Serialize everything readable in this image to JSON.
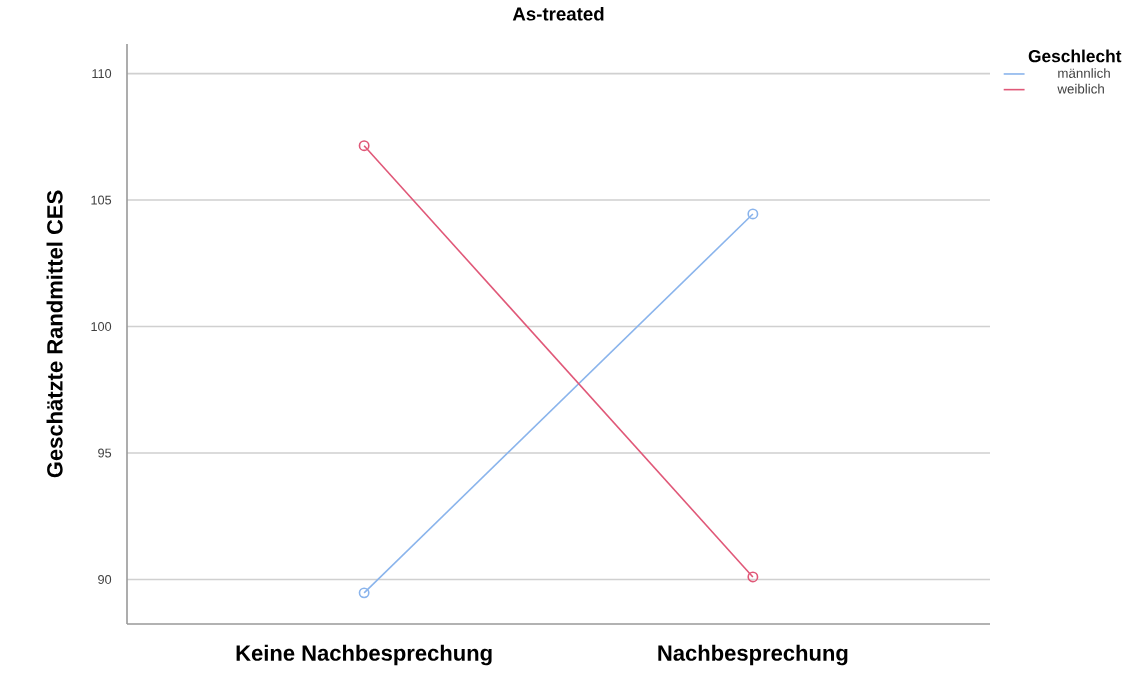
{
  "chart_data": {
    "type": "line",
    "title": "As-treated",
    "ylabel": "Geschätzte Randmittel CES",
    "legend_title": "Geschlecht",
    "categories": [
      "Keine Nachbesprechung",
      "Nachbesprechung"
    ],
    "series": [
      {
        "name": "männlich",
        "color": "#8ab4ec",
        "values": [
          89.47,
          104.45
        ]
      },
      {
        "name": "weiblich",
        "color": "#e05878",
        "values": [
          107.15,
          90.1
        ]
      }
    ],
    "ylim": [
      88.24,
      111.17
    ],
    "yticks": [
      90,
      95,
      100,
      105,
      110
    ],
    "grid": "y",
    "legend": "top right",
    "marker": "circle",
    "line_style": "solid"
  }
}
